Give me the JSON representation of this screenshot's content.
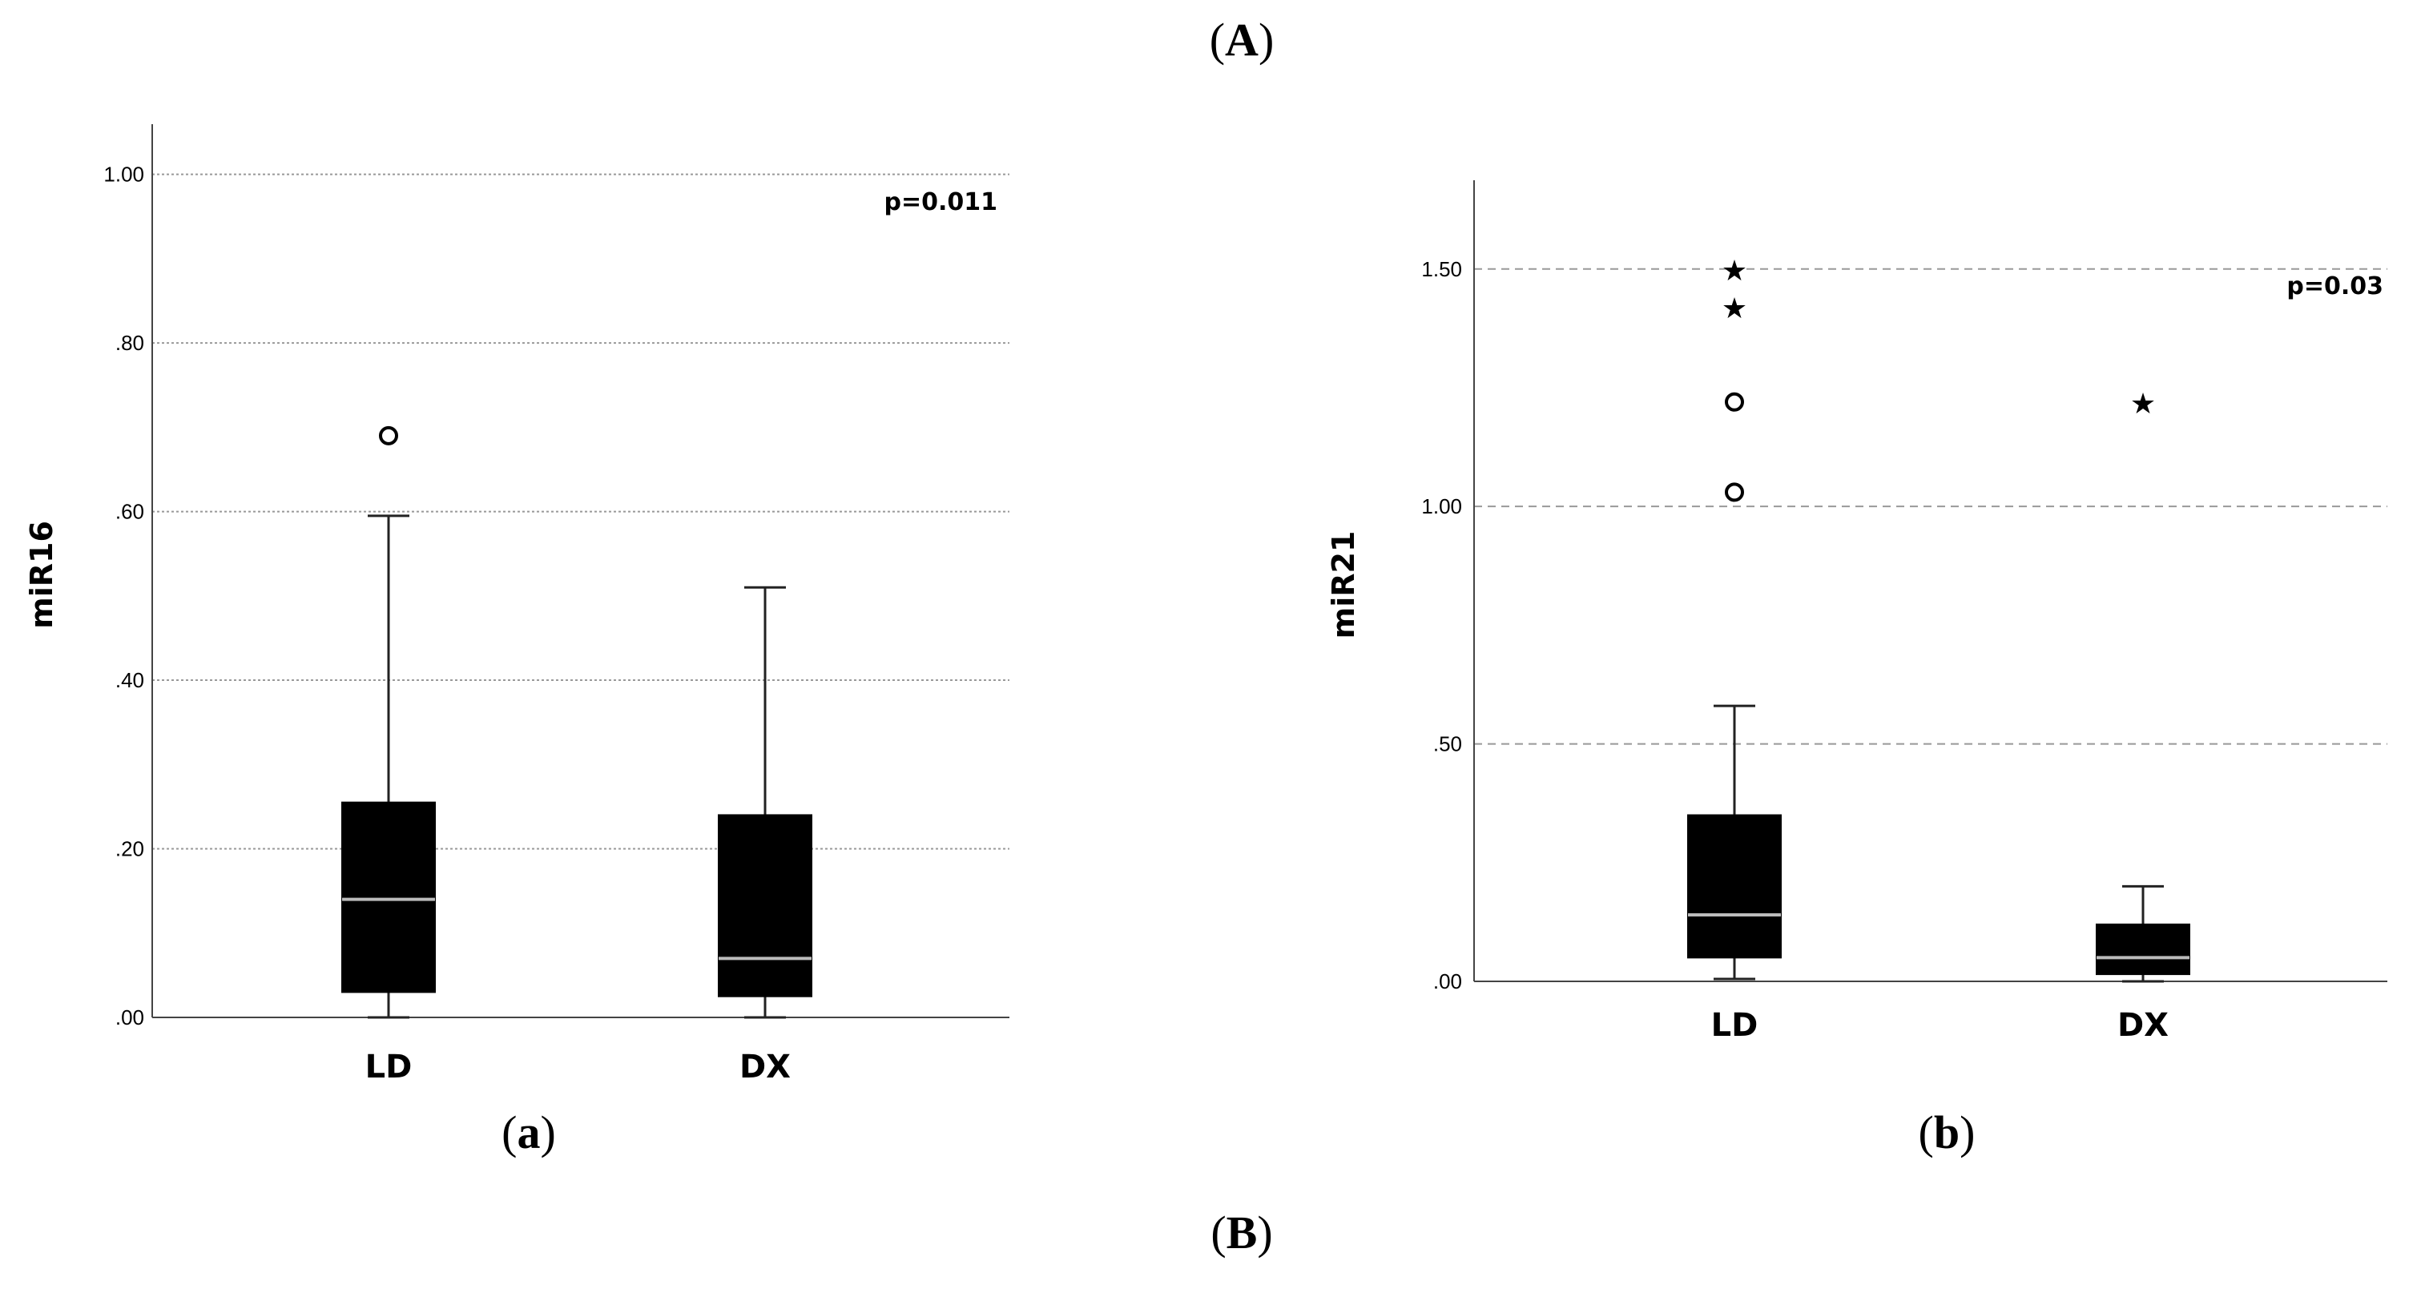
{
  "figure_labels": {
    "top": "A",
    "left": "a",
    "right": "b",
    "bottom": "B"
  },
  "chart_data": [
    {
      "type": "box",
      "panel": "a",
      "ylabel": "miR16",
      "annotation": "p=0.011",
      "ylim": [
        0,
        1.05
      ],
      "yticks": [
        0,
        0.2,
        0.4,
        0.6,
        0.8,
        1.0
      ],
      "ytick_labels": [
        ".00",
        ".20",
        ".40",
        ".60",
        ".80",
        "1.00"
      ],
      "grid": "horizontal dotted",
      "categories": [
        "LD",
        "DX"
      ],
      "boxes": [
        {
          "category": "LD",
          "min": 0.0,
          "q1": 0.03,
          "median": 0.14,
          "q3": 0.255,
          "max": 0.595,
          "outliers": [
            {
              "value": 0.69,
              "marker": "circle"
            }
          ]
        },
        {
          "category": "DX",
          "min": 0.0,
          "q1": 0.025,
          "median": 0.07,
          "q3": 0.24,
          "max": 0.51,
          "outliers": []
        }
      ],
      "color": "#000000",
      "median_color": "#bbbbbb"
    },
    {
      "type": "box",
      "panel": "b",
      "ylabel": "miR21",
      "annotation": "p=0.03",
      "ylim": [
        0,
        1.67
      ],
      "yticks": [
        0,
        0.5,
        1.0,
        1.5
      ],
      "ytick_labels": [
        ".00",
        ".50",
        "1.00",
        "1.50"
      ],
      "grid": "horizontal dashed",
      "categories": [
        "LD",
        "DX"
      ],
      "boxes": [
        {
          "category": "LD",
          "min": 0.005,
          "q1": 0.05,
          "median": 0.14,
          "q3": 0.35,
          "max": 0.58,
          "outliers": [
            {
              "value": 1.5,
              "marker": "star"
            },
            {
              "value": 1.42,
              "marker": "star"
            },
            {
              "value": 1.22,
              "marker": "circle"
            },
            {
              "value": 1.03,
              "marker": "circle"
            }
          ]
        },
        {
          "category": "DX",
          "min": 0.0,
          "q1": 0.015,
          "median": 0.05,
          "q3": 0.12,
          "max": 0.2,
          "outliers": [
            {
              "value": 1.22,
              "marker": "star"
            }
          ]
        }
      ],
      "color": "#000000",
      "median_color": "#bbbbbb"
    }
  ]
}
